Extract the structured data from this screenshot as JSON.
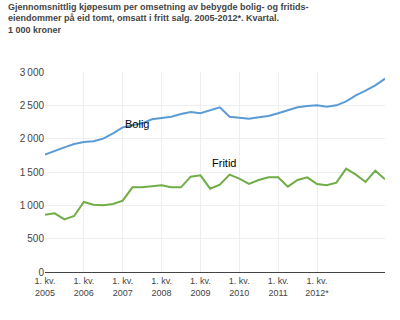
{
  "chart_data": {
    "type": "line",
    "title": "Gjennomsnittlig kjøpesum per omsetning av bebygde bolig- og fritids-\neiendommer på eid tomt, omsatt i fritt salg. 2005-2012*. Kvartal.\n1 000 kroner",
    "categories": [
      "1. kv.\n2005",
      null,
      null,
      null,
      "1. kv.\n2006",
      null,
      null,
      null,
      "1. kv.\n2007",
      null,
      null,
      null,
      "1. kv.\n2008",
      null,
      null,
      null,
      "1. kv.\n2009",
      null,
      null,
      null,
      "1. kv.\n2010",
      null,
      null,
      null,
      "1. kv.\n2011",
      null,
      null,
      null,
      "1. kv.\n2012*",
      null,
      null,
      null,
      null,
      null,
      null,
      null
    ],
    "series": [
      {
        "color": "#5b9bd5",
        "values": [
          1760,
          1820,
          1870,
          1920,
          1950,
          1960,
          2000,
          2080,
          2170,
          2200,
          2230,
          2290,
          2310,
          2330,
          2370,
          2400,
          2380,
          2420,
          2470,
          2330,
          2320,
          2300,
          2320,
          2340,
          2380,
          2430,
          2470,
          2490,
          2500,
          2480,
          2500,
          2560,
          2650,
          2720,
          2800,
          2900
        ]
      },
      {
        "color": "#70ad47",
        "values": [
          860,
          880,
          790,
          840,
          1050,
          1010,
          1000,
          1020,
          1070,
          1270,
          1270,
          1280,
          1300,
          1270,
          1270,
          1430,
          1450,
          1250,
          1310,
          1460,
          1400,
          1320,
          1380,
          1420,
          1420,
          1280,
          1380,
          1420,
          1320,
          1300,
          1340,
          1550,
          1460,
          1350,
          1520,
          1390
        ]
      }
    ],
    "annotations": [
      {
        "text": "Bolig",
        "x": 8,
        "y": 2100
      },
      {
        "text": "Fritid",
        "x": 17,
        "y": 1520
      }
    ],
    "ylim": [
      0,
      3000
    ],
    "yticks": [
      0,
      500,
      {
        "value": 1000,
        "label": "1 000"
      },
      {
        "value": 1500,
        "label": "1 500"
      },
      {
        "value": 2000,
        "label": "2 000"
      },
      {
        "value": 2500,
        "label": "2 500"
      },
      {
        "value": 3000,
        "label": "3 000"
      }
    ],
    "grid": true
  }
}
